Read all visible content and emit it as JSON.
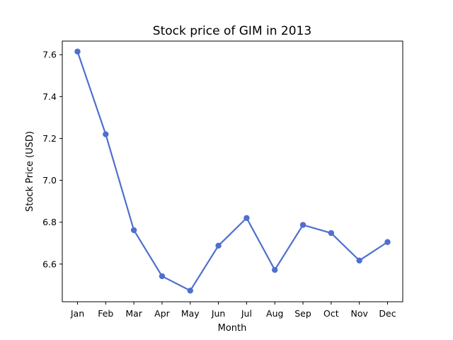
{
  "chart_data": {
    "type": "line",
    "title": "Stock price of GIM in 2013",
    "xlabel": "Month",
    "ylabel": "Stock Price (USD)",
    "categories": [
      "Jan",
      "Feb",
      "Mar",
      "Apr",
      "May",
      "Jun",
      "Jul",
      "Aug",
      "Sep",
      "Oct",
      "Nov",
      "Dec"
    ],
    "series": [
      {
        "name": "",
        "color": "#4f6fcf",
        "values": [
          7.615,
          7.22,
          6.762,
          6.542,
          6.473,
          6.688,
          6.82,
          6.572,
          6.787,
          6.748,
          6.617,
          6.705
        ]
      }
    ],
    "ylim": [
      6.42,
      7.665
    ],
    "yticks": [
      6.6,
      6.8,
      7.0,
      7.2,
      7.4,
      7.6
    ],
    "ytick_labels": [
      "6.6",
      "6.8",
      "7.0",
      "7.2",
      "7.4",
      "7.6"
    ],
    "grid": false
  }
}
